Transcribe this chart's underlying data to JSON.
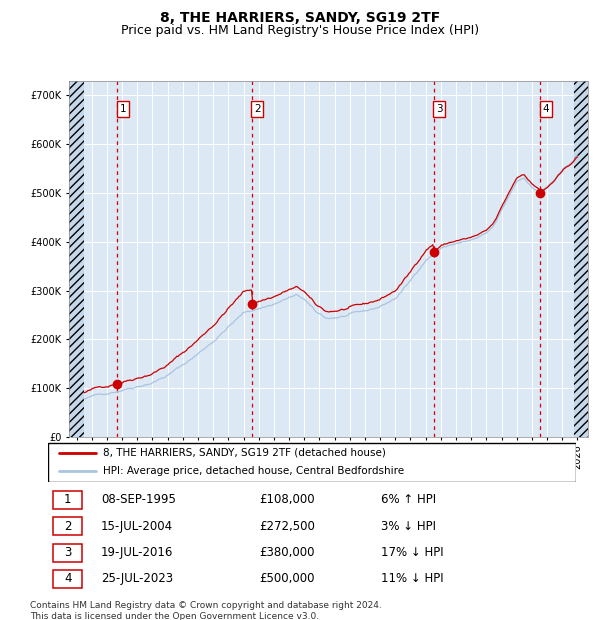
{
  "title": "8, THE HARRIERS, SANDY, SG19 2TF",
  "subtitle": "Price paid vs. HM Land Registry's House Price Index (HPI)",
  "ylim": [
    0,
    730000
  ],
  "yticks": [
    0,
    100000,
    200000,
    300000,
    400000,
    500000,
    600000,
    700000
  ],
  "ytick_labels": [
    "£0",
    "£100K",
    "£200K",
    "£300K",
    "£400K",
    "£500K",
    "£600K",
    "£700K"
  ],
  "xlim_start": 1992.5,
  "xlim_end": 2026.7,
  "hpi_line_color": "#aac4e0",
  "price_line_color": "#cc0000",
  "dot_color": "#cc0000",
  "dashed_line_color": "#dd0000",
  "grid_color": "#ffffff",
  "plot_bg_color": "#dce9f5",
  "hatch_color": "#c5d8ea",
  "sale_dates": [
    1995.69,
    2004.54,
    2016.54,
    2023.56
  ],
  "sale_prices": [
    108000,
    272500,
    380000,
    500000
  ],
  "sale_labels": [
    "1",
    "2",
    "3",
    "4"
  ],
  "sale_info": [
    [
      "1",
      "08-SEP-1995",
      "£108,000",
      "6% ↑ HPI"
    ],
    [
      "2",
      "15-JUL-2004",
      "£272,500",
      "3% ↓ HPI"
    ],
    [
      "3",
      "19-JUL-2016",
      "£380,000",
      "17% ↓ HPI"
    ],
    [
      "4",
      "25-JUL-2023",
      "£500,000",
      "11% ↓ HPI"
    ]
  ],
  "legend_entry1": "8, THE HARRIERS, SANDY, SG19 2TF (detached house)",
  "legend_entry2": "HPI: Average price, detached house, Central Bedfordshire",
  "footer": "Contains HM Land Registry data © Crown copyright and database right 2024.\nThis data is licensed under the Open Government Licence v3.0.",
  "title_fontsize": 10,
  "subtitle_fontsize": 9,
  "tick_fontsize": 7,
  "footer_fontsize": 6.5
}
